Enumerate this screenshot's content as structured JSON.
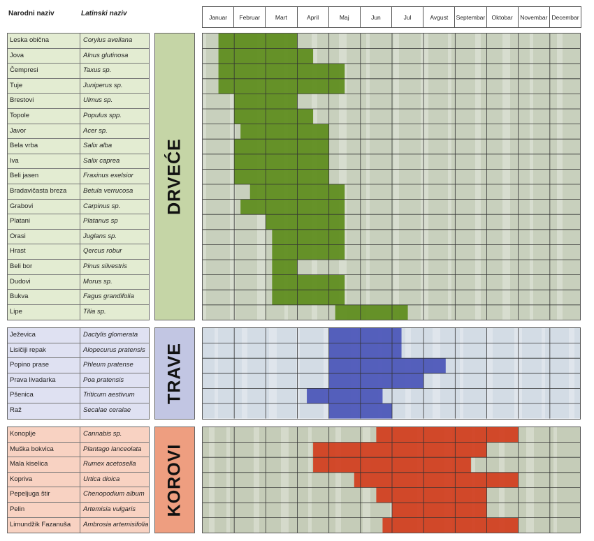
{
  "headers": {
    "common_name": "Narodni naziv",
    "latin_name": "Latinski naziv"
  },
  "months": [
    "Januar",
    "Februar",
    "Mart",
    "April",
    "Maj",
    "Jun",
    "Jul",
    "Avgust",
    "Septembar",
    "Oktobar",
    "Novembar",
    "Decembar"
  ],
  "colors": {
    "trees": "#5e8c1c",
    "grasses": "#4a55b8",
    "weeds": "#d23d1e",
    "trees_band": "#c5d5a6",
    "grasses_band": "#c2c6e3",
    "weeds_band": "#ee9e80",
    "trees_list": "#e3ecd2",
    "grasses_list": "#dfe1f2",
    "weeds_list": "#f8d2c2"
  },
  "chart_data": {
    "type": "heatmap",
    "x": [
      "Januar",
      "Februar",
      "Mart",
      "April",
      "Maj",
      "Jun",
      "Jul",
      "Avgust",
      "Septembar",
      "Oktobar",
      "Novembar",
      "Decembar"
    ],
    "groups": [
      {
        "label": "DRVEĆE",
        "color_key": "trees",
        "plants": [
          {
            "name": "Leska obična",
            "latin": "Corylus avellana",
            "start": 0.5,
            "end": 3.0
          },
          {
            "name": "Jova",
            "latin": "Alnus glutinosa",
            "start": 0.5,
            "end": 3.5
          },
          {
            "name": "Čempresi",
            "latin": "Taxus sp.",
            "start": 0.5,
            "end": 4.5
          },
          {
            "name": "Tuje",
            "latin": "Juniperus sp.",
            "start": 0.5,
            "end": 4.5
          },
          {
            "name": "Brestovi",
            "latin": "Ulmus sp.",
            "start": 1.0,
            "end": 3.0
          },
          {
            "name": "Topole",
            "latin": "Populus spp.",
            "start": 1.0,
            "end": 3.5
          },
          {
            "name": "Javor",
            "latin": "Acer sp.",
            "start": 1.2,
            "end": 4.0
          },
          {
            "name": "Bela vrba",
            "latin": "Salix alba",
            "start": 1.0,
            "end": 4.0
          },
          {
            "name": "Iva",
            "latin": "Salix caprea",
            "start": 1.0,
            "end": 4.0
          },
          {
            "name": "Beli jasen",
            "latin": "Fraxinus exelsior",
            "start": 1.0,
            "end": 4.0
          },
          {
            "name": "Bradavičasta breza",
            "latin": "Betula verrucosa",
            "start": 1.5,
            "end": 4.5
          },
          {
            "name": "Grabovi",
            "latin": "Carpinus sp.",
            "start": 1.2,
            "end": 4.5
          },
          {
            "name": "Platani",
            "latin": "Platanus sp",
            "start": 2.0,
            "end": 4.5
          },
          {
            "name": "Orasi",
            "latin": "Juglans sp.",
            "start": 2.2,
            "end": 4.5
          },
          {
            "name": "Hrast",
            "latin": "Qercus robur",
            "start": 2.2,
            "end": 4.5
          },
          {
            "name": "Beli bor",
            "latin": "Pinus silvestris",
            "start": 2.2,
            "end": 3.0
          },
          {
            "name": "Dudovi",
            "latin": "Morus sp.",
            "start": 2.2,
            "end": 4.5
          },
          {
            "name": "Bukva",
            "latin": "Fagus grandifolia",
            "start": 2.2,
            "end": 4.5
          },
          {
            "name": "Lipe",
            "latin": "Tilia sp.",
            "start": 4.2,
            "end": 6.5
          }
        ]
      },
      {
        "label": "TRAVE",
        "color_key": "grasses",
        "plants": [
          {
            "name": "Ježevica",
            "latin": "Dactylis glomerata",
            "start": 4.0,
            "end": 6.3
          },
          {
            "name": "Lisičiji repak",
            "latin": "Alopecurus pratensis",
            "start": 4.0,
            "end": 6.3
          },
          {
            "name": "Popino prase",
            "latin": "Phleum pratense",
            "start": 4.0,
            "end": 7.7
          },
          {
            "name": "Prava livadarka",
            "latin": "Poa pratensis",
            "start": 4.0,
            "end": 7.0
          },
          {
            "name": "Pšenica",
            "latin": "Triticum aestivum",
            "start": 3.3,
            "end": 5.7
          },
          {
            "name": "Raž",
            "latin": "Secalae ceralae",
            "start": 4.0,
            "end": 6.0
          }
        ]
      },
      {
        "label": "KOROVI",
        "color_key": "weeds",
        "plants": [
          {
            "name": "Konoplje",
            "latin": "Cannabis sp.",
            "start": 5.5,
            "end": 10.0
          },
          {
            "name": "Muška bokvica",
            "latin": "Plantago lanceolata",
            "start": 3.5,
            "end": 9.0
          },
          {
            "name": "Mala kiselica",
            "latin": "Rumex acetosella",
            "start": 3.5,
            "end": 8.5
          },
          {
            "name": "Kopriva",
            "latin": "Urtica dioica",
            "start": 4.8,
            "end": 10.0
          },
          {
            "name": "Pepeljuga štir",
            "latin": "Chenopodium album",
            "start": 5.5,
            "end": 9.0
          },
          {
            "name": "Pelin",
            "latin": "Artemisia vulgaris",
            "start": 6.0,
            "end": 9.0
          },
          {
            "name": "Limundžik Fazanuša",
            "latin": "Ambrosia artemisifolia",
            "start": 5.7,
            "end": 10.0
          }
        ]
      }
    ]
  }
}
